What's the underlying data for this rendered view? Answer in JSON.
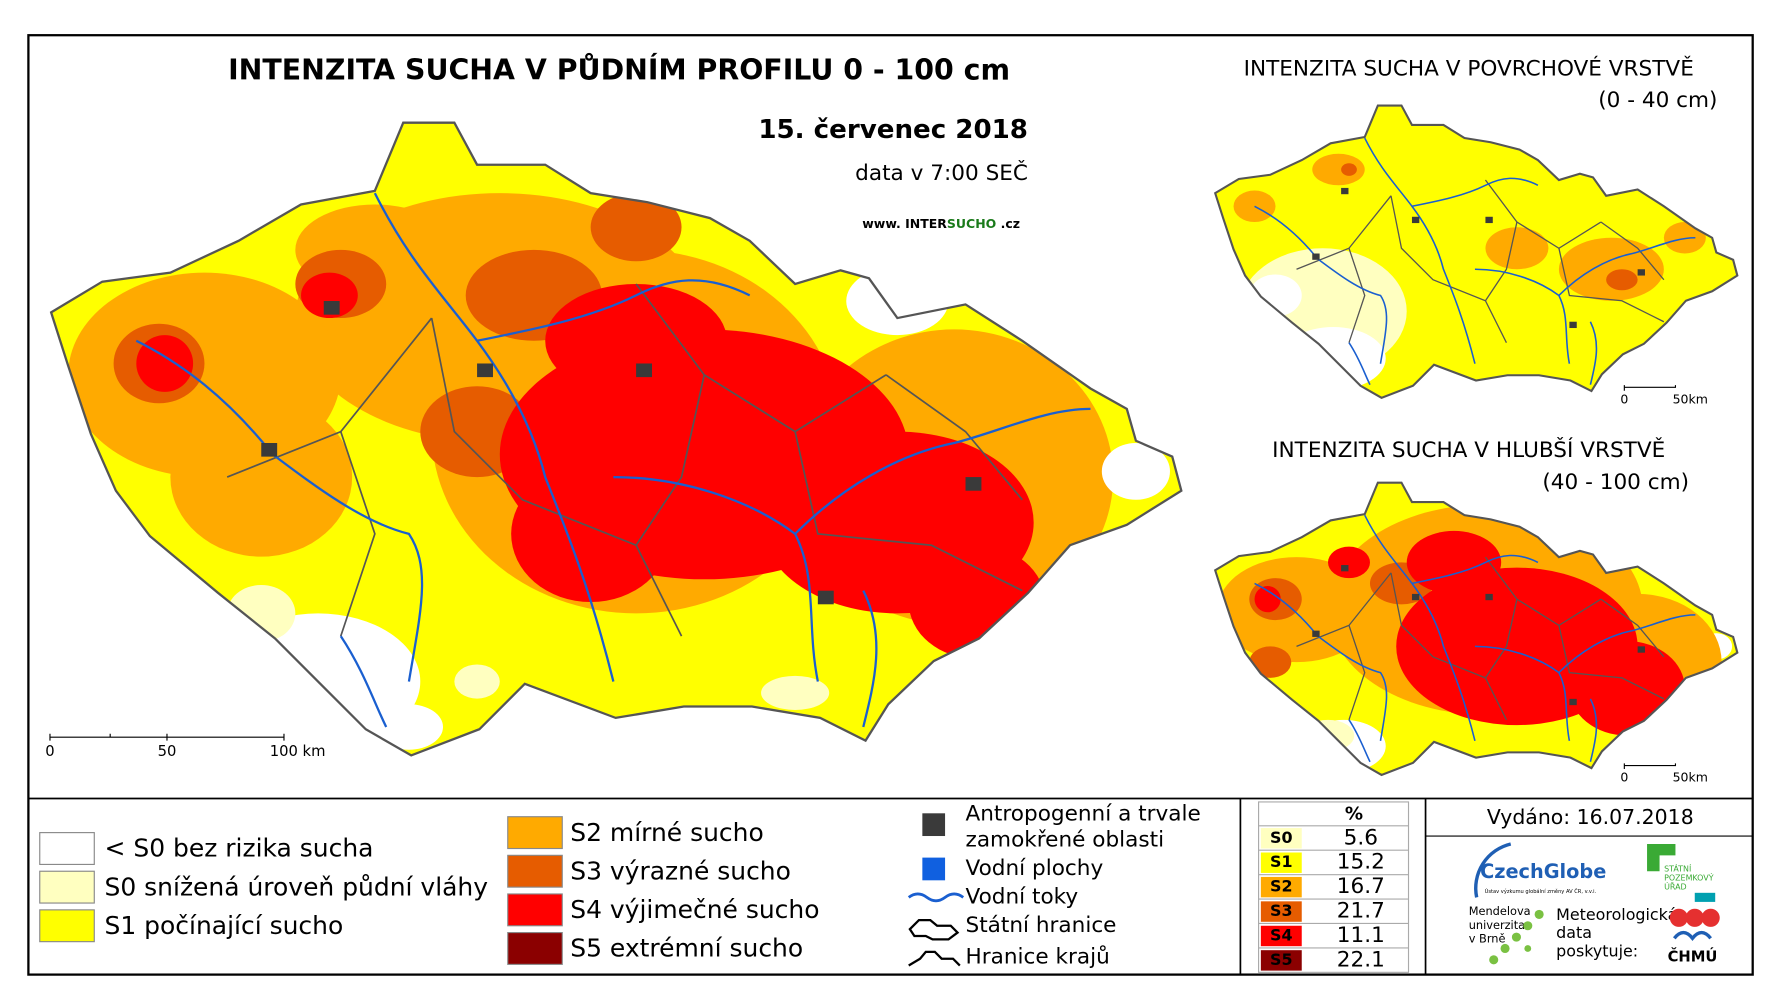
{
  "main_map": {
    "title": "INTENZITA SUCHA V PŮDNÍM PROFILU 0 - 100 cm",
    "date": "15. červenec 2018",
    "time": "data v 7:00 SEČ",
    "website": [
      "www. INTER",
      "SUCHO",
      " .cz"
    ],
    "scale": [
      "0",
      "50",
      "100 km"
    ]
  },
  "inset_maps": [
    {
      "title": "INTENZITA SUCHA V POVRCHOVÉ VRSTVĚ",
      "depth": "(0 - 40 cm)",
      "scale": [
        "0",
        "50km"
      ]
    },
    {
      "title": "INTENZITA SUCHA V HLUBŠÍ VRSTVĚ",
      "depth": "(40 - 100 cm)",
      "scale": [
        "0",
        "50km"
      ]
    }
  ],
  "legend": {
    "classes": [
      {
        "label": "< S0 bez rizika sucha",
        "color": "#ffffff"
      },
      {
        "label": "S0 snížená úroveň půdní vláhy",
        "color": "#ffffc0"
      },
      {
        "label": "S1 počínající sucho",
        "color": "#ffff00"
      },
      {
        "label": "S2 mírné sucho",
        "color": "#ffaa00"
      },
      {
        "label": "S3 výrazné sucho",
        "color": "#e65c00"
      },
      {
        "label": "S4 výjimečné sucho",
        "color": "#ff0000"
      },
      {
        "label": "S5 extrémní sucho",
        "color": "#8b0000"
      }
    ],
    "features": [
      {
        "label": [
          "Antropogenní a trvale",
          "zamokřené oblasti"
        ]
      },
      {
        "label": [
          "Vodní plochy"
        ]
      },
      {
        "label": [
          "Vodní toky"
        ]
      },
      {
        "label": [
          "Státní hranice"
        ]
      },
      {
        "label": [
          "Hranice krajů"
        ]
      }
    ]
  },
  "table": {
    "header": "%",
    "rows": [
      [
        "S0",
        5.6
      ],
      [
        "S1",
        15.2
      ],
      [
        "S2",
        16.7
      ],
      [
        "S3",
        21.7
      ],
      [
        "S4",
        11.1
      ],
      [
        "S5",
        22.1
      ]
    ]
  },
  "footer": {
    "issued": "Vydáno: 16.07.2018",
    "czechglobe": "CzechGlobe",
    "czechglobe_sub": "Ústav výzkumu globální změny AV ČR, v.v.i.",
    "spu": [
      "STÁTNÍ",
      "POZEMKOVÝ",
      "ÚŘAD"
    ],
    "mendelu": [
      "Mendelova",
      "univerzita",
      "v Brně"
    ],
    "chmu_note": [
      "Meteorologická",
      "data",
      "poskytuje:"
    ],
    "chmu": "ČHMÚ"
  }
}
